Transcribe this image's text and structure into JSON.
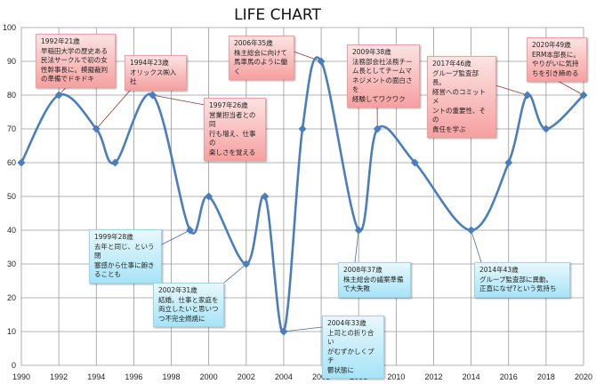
{
  "chart_data": {
    "type": "line",
    "title": "LIFE CHART",
    "smooth": true,
    "marker": "diamond",
    "grid": true,
    "xlim": [
      1990,
      2020
    ],
    "ylim": [
      0,
      100
    ],
    "x_ticks": [
      1990,
      1992,
      1994,
      1996,
      1998,
      2000,
      2002,
      2004,
      2006,
      2008,
      2010,
      2012,
      2014,
      2016,
      2018,
      2020
    ],
    "y_ticks": [
      0,
      10,
      20,
      30,
      40,
      50,
      60,
      70,
      80,
      90,
      100
    ],
    "x": [
      1990,
      1992,
      1994,
      1995,
      1997,
      1999,
      2000,
      2002,
      2003,
      2004,
      2005,
      2006,
      2008,
      2009,
      2011,
      2014,
      2016,
      2017,
      2018,
      2020
    ],
    "y": [
      60,
      80,
      70,
      60,
      80,
      40,
      50,
      30,
      50,
      10,
      70,
      90,
      40,
      70,
      60,
      40,
      60,
      80,
      70,
      80
    ],
    "colors": {
      "line": "#4a7ebb",
      "positive_box": "#f7a0a0",
      "negative_box": "#a6e4f7",
      "grid": "#9a9a9a"
    },
    "annotations": [
      {
        "x": 1992,
        "y": 80,
        "tone": "positive",
        "lines": [
          "1992年21歳",
          "早稲田大学の歴史ある",
          "民法サークルで初の女",
          "性幹事長に。模擬裁判",
          "の準備でドキドキ"
        ]
      },
      {
        "x": 1994,
        "y": 70,
        "tone": "positive",
        "lines": [
          "1994年23歳",
          "オリックス㈱入社"
        ]
      },
      {
        "x": 1997,
        "y": 80,
        "tone": "positive",
        "lines": [
          "1997年26歳",
          "営業担当者との同",
          "行も増え、仕事の",
          "楽しさを覚える"
        ]
      },
      {
        "x": 2006,
        "y": 90,
        "tone": "positive",
        "lines": [
          "2006年35歳",
          "株主総会に向けて",
          "馬車馬のように働く"
        ]
      },
      {
        "x": 2009,
        "y": 70,
        "tone": "positive",
        "lines": [
          "2009年38歳",
          "法務部会社法務チー",
          "ム長としてチームマ",
          "ネジメントの面白さを",
          "経験してワクワク"
        ]
      },
      {
        "x": 2017,
        "y": 80,
        "tone": "positive",
        "lines": [
          "2017年46歳",
          "グループ監査部長。",
          "経営へのコミットメ",
          "ントの重要性、その",
          "責任を学ぶ"
        ]
      },
      {
        "x": 2020,
        "y": 80,
        "tone": "positive",
        "lines": [
          "2020年49歳",
          "ERM本部長に。",
          "やりがいに気持",
          "ちを引き締める"
        ]
      },
      {
        "x": 1999,
        "y": 40,
        "tone": "negative",
        "lines": [
          "1999年28歳",
          "去年と同じ、という閉",
          "塞感から仕事に飽き",
          "ることも"
        ]
      },
      {
        "x": 2002,
        "y": 30,
        "tone": "negative",
        "lines": [
          "2002年31歳",
          "結婚。仕事と家庭を",
          "両立したいと思いつ",
          "つ不完全燃焼に"
        ]
      },
      {
        "x": 2004,
        "y": 10,
        "tone": "negative",
        "lines": [
          "2004年33歳",
          "上司との折り合い",
          "がむずかしくプチ",
          "鬱状態に"
        ]
      },
      {
        "x": 2008,
        "y": 40,
        "tone": "negative",
        "lines": [
          "2008年37歳",
          "株主総会の議案準備",
          "で大失敗"
        ]
      },
      {
        "x": 2014,
        "y": 40,
        "tone": "negative",
        "lines": [
          "2014年43歳",
          "グループ監査部に異動。",
          "正直になぜ?という気持ち"
        ]
      }
    ]
  }
}
